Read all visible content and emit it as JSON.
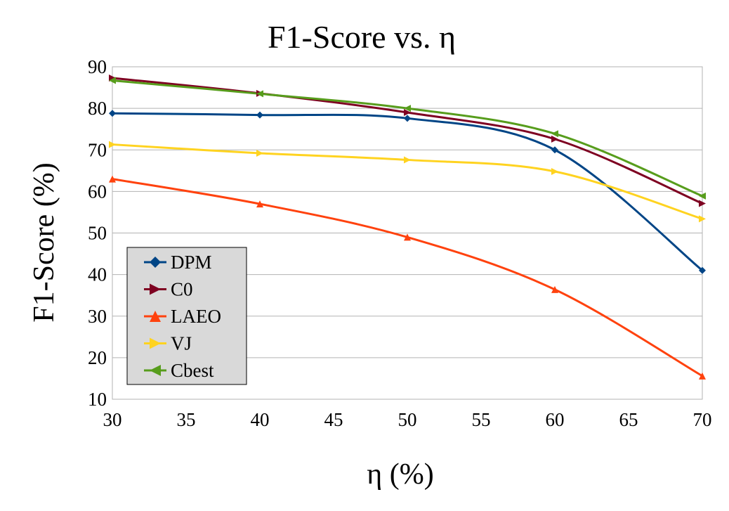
{
  "chart_data": {
    "type": "line",
    "title": "F1-Score vs. η",
    "xlabel": "η (%)",
    "ylabel": "F1-Score (%)",
    "xlim": [
      30,
      70
    ],
    "ylim": [
      10,
      90
    ],
    "x_ticks": [
      30,
      35,
      40,
      45,
      50,
      55,
      60,
      65,
      70
    ],
    "y_ticks": [
      10,
      20,
      30,
      40,
      50,
      60,
      70,
      80,
      90
    ],
    "grid": true,
    "legend_position": "bottom-left",
    "x": [
      30,
      40,
      50,
      60,
      70
    ],
    "series": [
      {
        "name": "DPM",
        "color": "#004586",
        "marker": "diamond",
        "values": [
          78.8,
          78.4,
          77.6,
          70.0,
          41.0
        ]
      },
      {
        "name": "C0",
        "color": "#7e0021",
        "marker": "triangle-right",
        "values": [
          87.3,
          83.6,
          79.0,
          72.6,
          57.1
        ]
      },
      {
        "name": "LAEO",
        "color": "#ff420e",
        "marker": "triangle-up",
        "values": [
          63.0,
          57.0,
          49.0,
          36.4,
          15.6
        ]
      },
      {
        "name": "VJ",
        "color": "#ffd320",
        "marker": "triangle-right",
        "values": [
          71.3,
          69.2,
          67.6,
          64.8,
          53.4
        ]
      },
      {
        "name": "Cbest",
        "color": "#579d1c",
        "marker": "triangle-left",
        "values": [
          86.7,
          83.5,
          80.0,
          73.9,
          58.9
        ]
      }
    ]
  }
}
